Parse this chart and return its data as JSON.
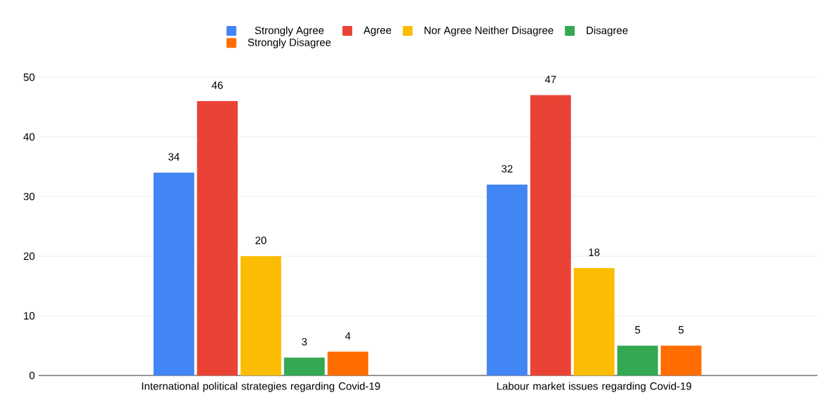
{
  "chart_data": {
    "type": "bar",
    "categories": [
      "International political strategies regarding Covid-19",
      "Labour market issues regarding Covid-19"
    ],
    "series": [
      {
        "name": "Strongly Agree",
        "color": "#4285f4",
        "values": [
          34,
          32
        ]
      },
      {
        "name": "Agree",
        "color": "#ea4335",
        "values": [
          46,
          47
        ]
      },
      {
        "name": "Nor Agree Neither Disagree",
        "color": "#fbbc04",
        "values": [
          20,
          18
        ]
      },
      {
        "name": "Disagree",
        "color": "#34a853",
        "values": [
          3,
          5
        ]
      },
      {
        "name": "Strongly Disagree",
        "color": "#ff6d01",
        "values": [
          4,
          5
        ]
      }
    ],
    "ylim": [
      0,
      50
    ],
    "yticks": [
      0,
      10,
      20,
      30,
      40,
      50
    ],
    "grid": "y",
    "legend": "top",
    "data_labels": true
  }
}
